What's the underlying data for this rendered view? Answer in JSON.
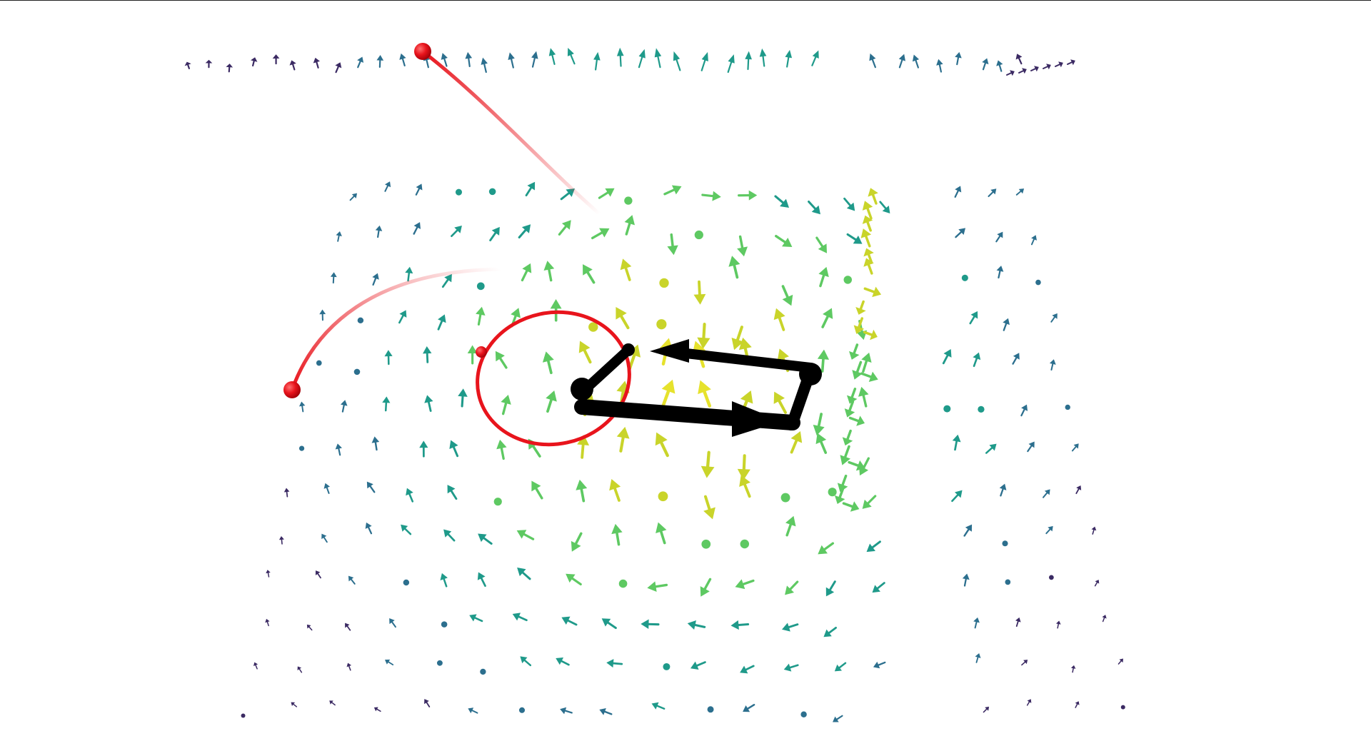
{
  "scene": {
    "type": "3d-vector-field",
    "background": "#ffffff",
    "colormap": [
      "#3b2a63",
      "#2c6f8e",
      "#1f9a8a",
      "#5ec962",
      "#c9d42a",
      "#e6e22c"
    ],
    "glyph": "arrow",
    "paths": [
      {
        "name": "red-curve",
        "color": "#e8141c",
        "style": "curve-with-endpoint-spheres"
      },
      {
        "name": "red-circle",
        "color": "#e8141c",
        "style": "closed-loop"
      },
      {
        "name": "black-rectangular-loop",
        "color": "#000000",
        "style": "directed-closed-loop"
      }
    ]
  }
}
